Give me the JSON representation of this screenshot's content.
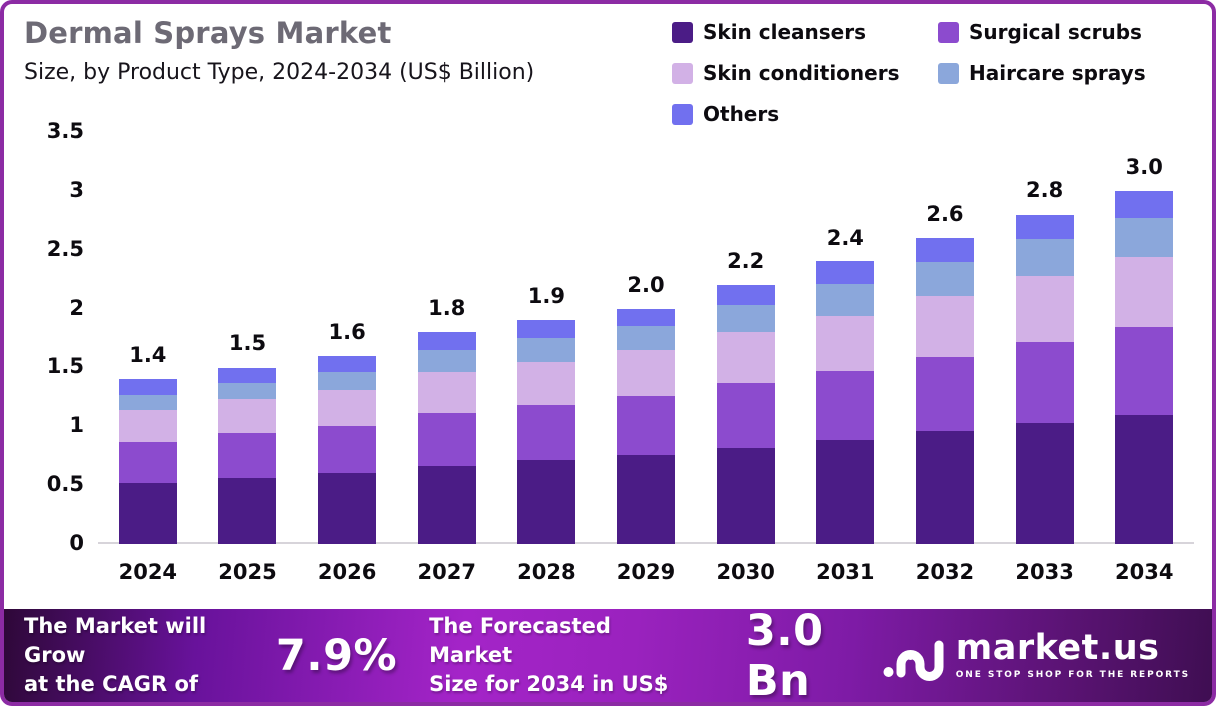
{
  "header": {
    "title": "Dermal Sprays Market",
    "subtitle": "Size, by Product Type, 2024-2034 (US$ Billion)"
  },
  "chart_data": {
    "type": "bar",
    "stacked": true,
    "title": "Dermal Sprays Market Size, by Product Type, 2024-2034 (US$ Billion)",
    "categories": [
      "2024",
      "2025",
      "2026",
      "2027",
      "2028",
      "2029",
      "2030",
      "2031",
      "2032",
      "2033",
      "2034"
    ],
    "series": [
      {
        "name": "Skin cleansers",
        "color": "#4B1C86",
        "values": [
          0.52,
          0.56,
          0.6,
          0.66,
          0.71,
          0.76,
          0.82,
          0.88,
          0.96,
          1.03,
          1.1
        ]
      },
      {
        "name": "Surgical scrubs",
        "color": "#8C4BCE",
        "values": [
          0.35,
          0.38,
          0.4,
          0.45,
          0.47,
          0.5,
          0.55,
          0.59,
          0.63,
          0.69,
          0.74
        ]
      },
      {
        "name": "Skin conditioners",
        "color": "#D2B1E6",
        "values": [
          0.27,
          0.29,
          0.31,
          0.35,
          0.37,
          0.39,
          0.43,
          0.47,
          0.52,
          0.56,
          0.6
        ]
      },
      {
        "name": "Haircare sprays",
        "color": "#8BA7DB",
        "values": [
          0.13,
          0.14,
          0.15,
          0.19,
          0.2,
          0.2,
          0.23,
          0.27,
          0.29,
          0.31,
          0.33
        ]
      },
      {
        "name": "Others",
        "color": "#7170EF",
        "values": [
          0.13,
          0.13,
          0.14,
          0.15,
          0.15,
          0.15,
          0.17,
          0.19,
          0.2,
          0.21,
          0.23
        ]
      }
    ],
    "totals_labels": [
      "1.4",
      "1.5",
      "1.6",
      "1.8",
      "1.9",
      "2.0",
      "2.2",
      "2.4",
      "2.6",
      "2.8",
      "3.0"
    ],
    "ylim": [
      0,
      3.5
    ],
    "yticks": [
      "0",
      "0.5",
      "1",
      "1.5",
      "2",
      "2.5",
      "3",
      "3.5"
    ],
    "xlabel": "",
    "ylabel": "",
    "grid": false,
    "legend_position": "top-right"
  },
  "footer": {
    "cagr_label": "The Market will Grow\nat the CAGR of",
    "cagr_value": "7.9%",
    "forecast_label": "The Forecasted Market\nSize for 2034 in US$",
    "forecast_value": "3.0 Bn",
    "logo_text": "market.us",
    "logo_tagline": "ONE STOP SHOP FOR THE REPORTS"
  },
  "colors": {
    "frame_border": "#8C2BA4",
    "title_gray": "#6D6A75",
    "axis_line": "#D7D4DA",
    "banner_start": "#2E0838",
    "banner_mid": "#A424C8",
    "banner_end": "#3F0E52"
  }
}
